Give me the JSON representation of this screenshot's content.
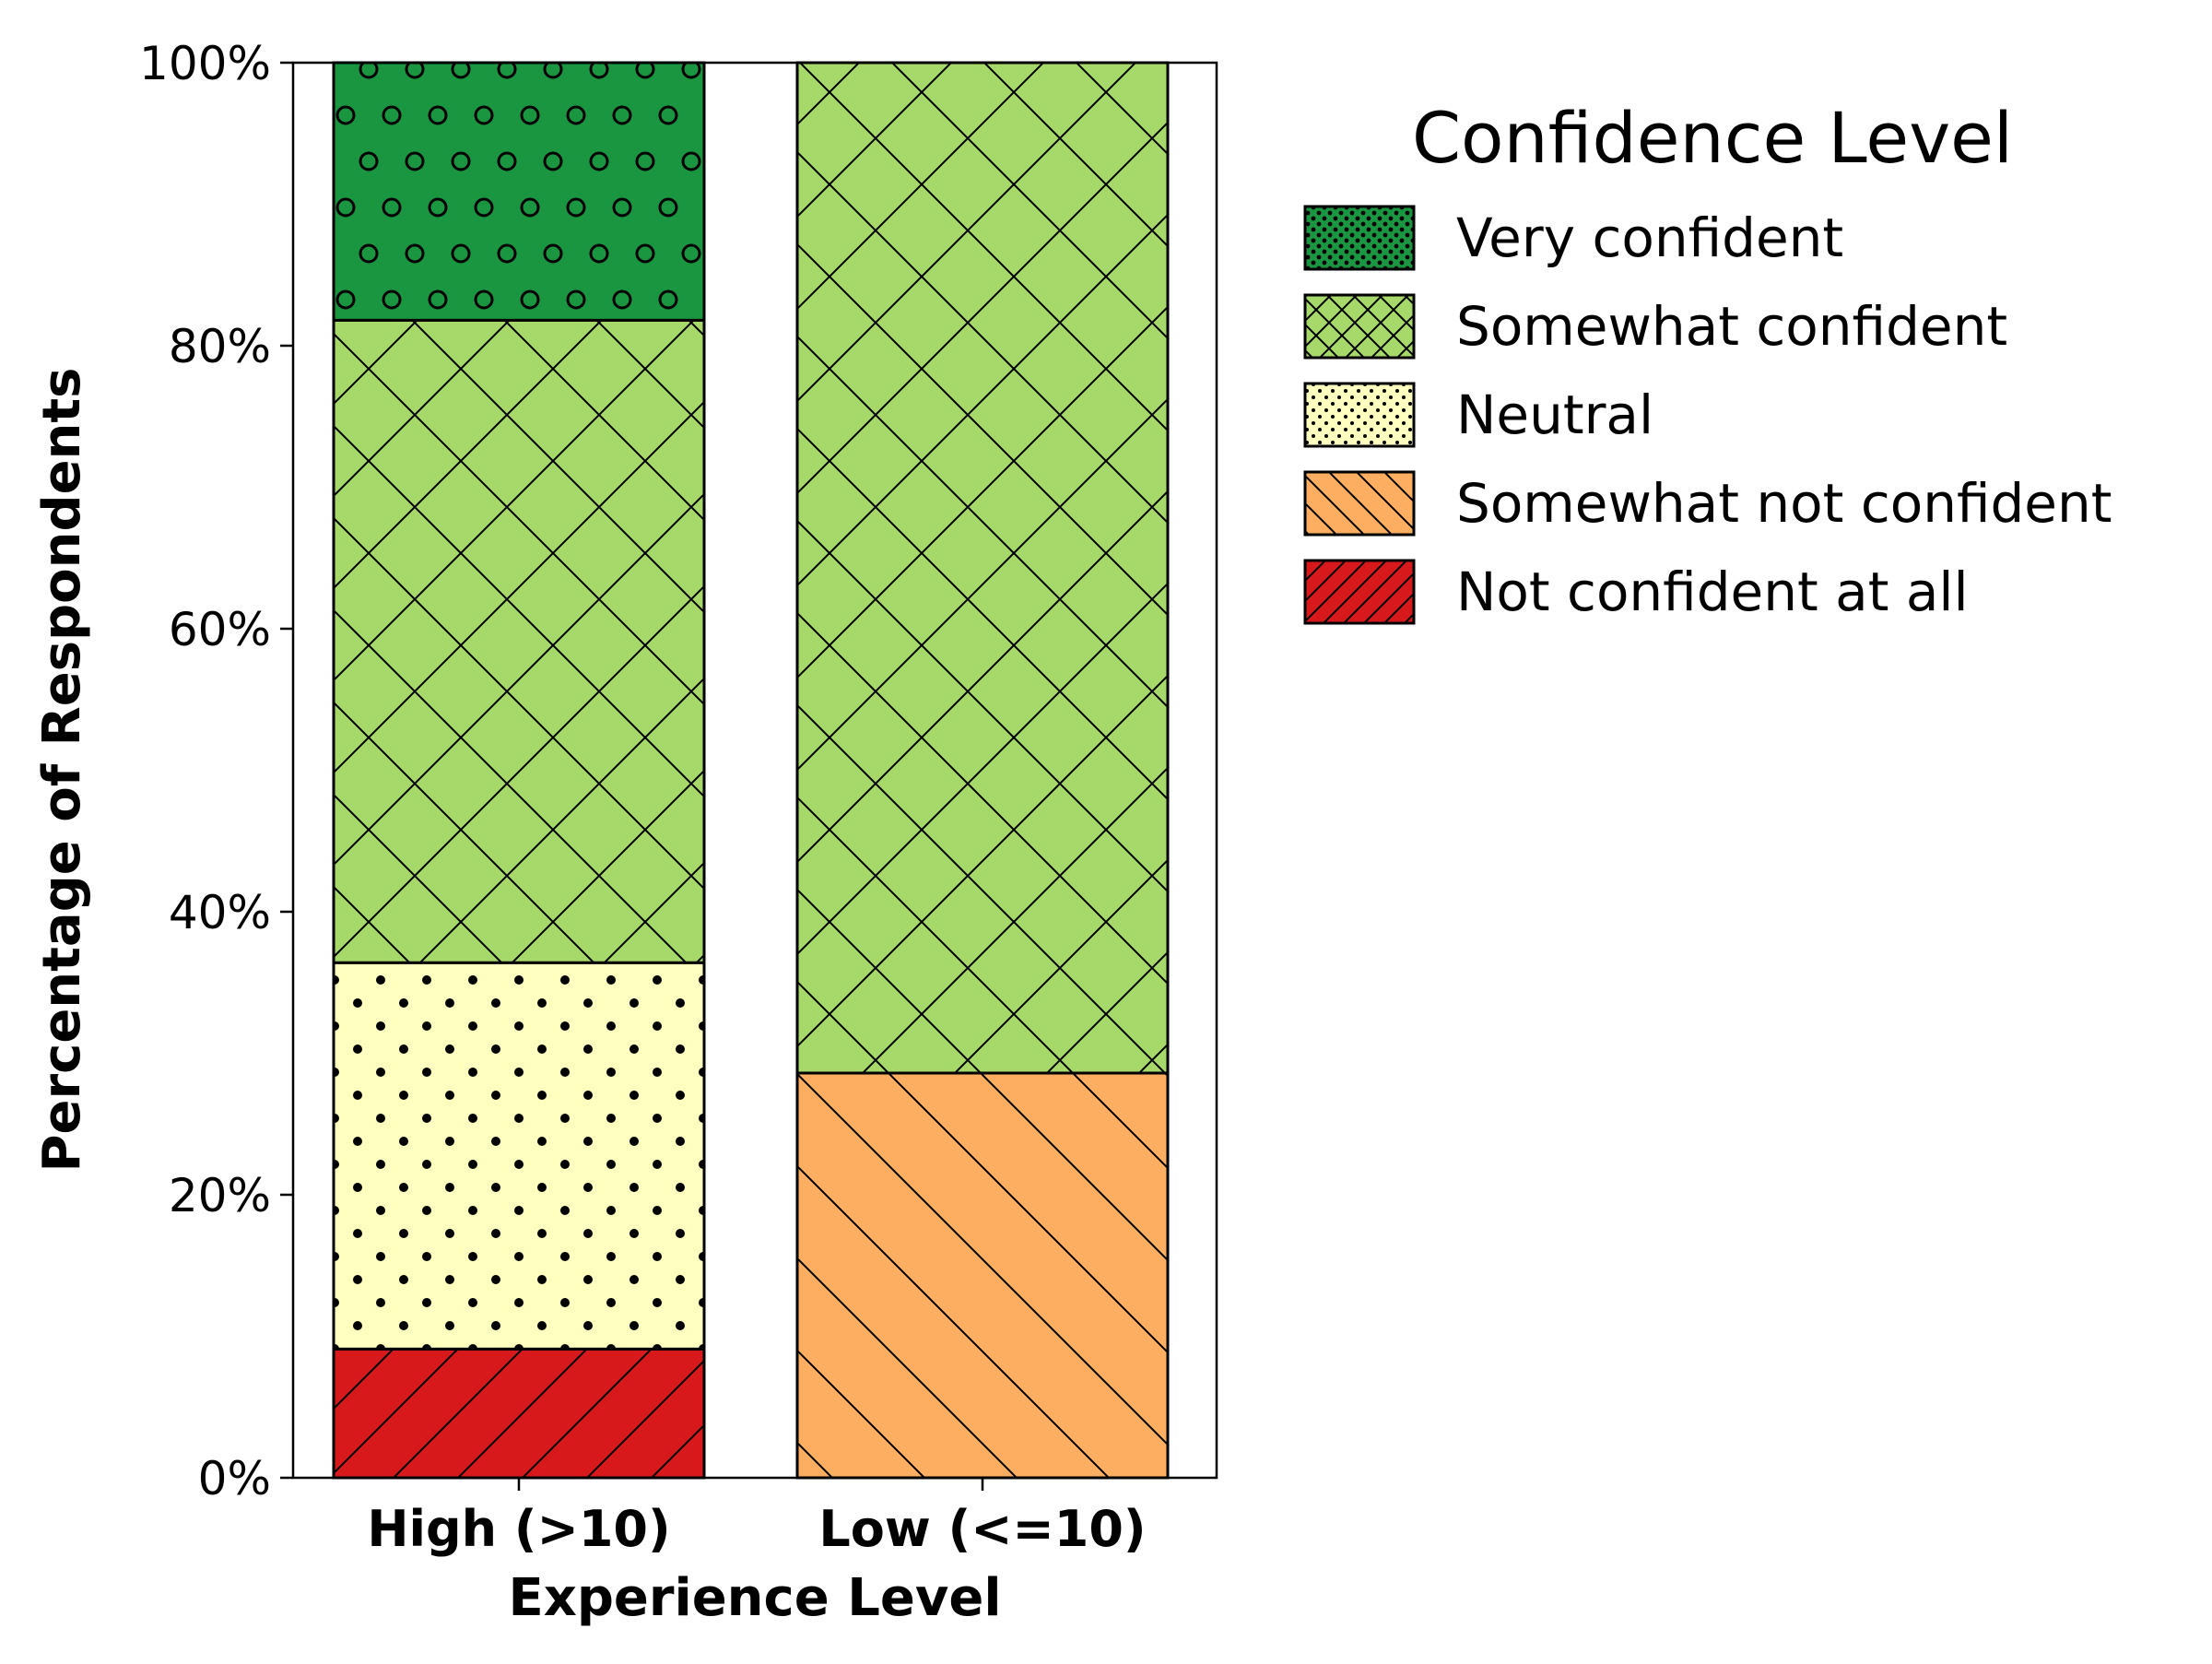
{
  "chart_data": {
    "type": "bar",
    "stacked": true,
    "title": "",
    "xlabel": "Experience Level",
    "ylabel": "Percentage of Respondents",
    "ylim": [
      0,
      100
    ],
    "yticks": [
      0,
      20,
      40,
      60,
      80,
      100
    ],
    "ytick_format": "{v}%",
    "categories": [
      "High (>10)",
      "Low (<=10)"
    ],
    "series": [
      {
        "name": "Not confident at all",
        "color": "#d7191c",
        "hatch": "diagonal-forward",
        "values": [
          9.1,
          0
        ]
      },
      {
        "name": "Somewhat not confident",
        "color": "#fdae61",
        "hatch": "diagonal-back",
        "values": [
          0,
          28.6
        ]
      },
      {
        "name": "Neutral",
        "color": "#ffffbf",
        "hatch": "small-dots",
        "values": [
          27.3,
          0
        ]
      },
      {
        "name": "Somewhat confident",
        "color": "#a6d96a",
        "hatch": "crosshatch",
        "values": [
          45.4,
          71.4
        ]
      },
      {
        "name": "Very confident",
        "color": "#1a9641",
        "hatch": "circles",
        "values": [
          18.2,
          0
        ]
      }
    ],
    "legend": {
      "title": "Confidence Level",
      "placement": "outside-right-top",
      "order": [
        "Very confident",
        "Somewhat confident",
        "Neutral",
        "Somewhat not confident",
        "Not confident at all"
      ]
    },
    "grid": false
  }
}
